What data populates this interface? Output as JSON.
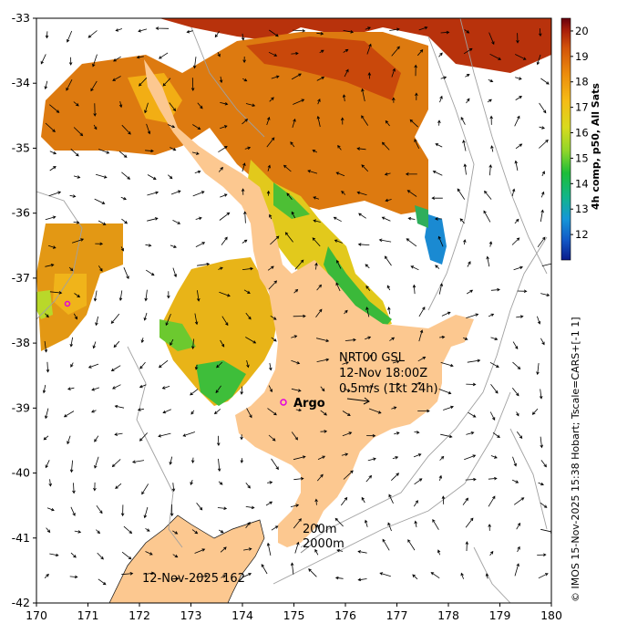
{
  "map": {
    "lon_ticks": [
      "170",
      "171",
      "172",
      "173",
      "174",
      "175",
      "176",
      "177",
      "178",
      "179",
      "180"
    ],
    "lat_ticks": [
      "-33",
      "-34",
      "-35",
      "-36",
      "-37",
      "-38",
      "-39",
      "-40",
      "-41",
      "-42"
    ],
    "lon_range": [
      170,
      180
    ],
    "lat_range": [
      -42,
      -33
    ],
    "land_color": "#fcc890",
    "ocean_color": "#ffffff"
  },
  "colorbar": {
    "title": "4h comp, p50, All Sats",
    "tick_labels": [
      "20",
      "19",
      "18",
      "17",
      "16",
      "15",
      "14",
      "13",
      "12"
    ],
    "range": [
      11,
      20.5
    ],
    "colors": [
      "#67000d",
      "#a81e0a",
      "#d2520a",
      "#ec8c0c",
      "#f5bb16",
      "#d9da1e",
      "#8fd62a",
      "#1dbd38",
      "#12b58a",
      "#1596d8",
      "#1257c6",
      "#0a1c8a"
    ]
  },
  "annotations": {
    "current_station": "NRT00 GSL",
    "current_time": "12-Nov 18:00Z",
    "current_speed": "0.5m/s (1kt 24h)",
    "argo_label": "Argo",
    "contour_200": "200m",
    "contour_2000": "2000m",
    "date_label": "12-Nov-2025 162",
    "credit": "© IMOS 15-Nov-2025 15:38 Hobart; Tscale=CARS+[-1 1]"
  }
}
